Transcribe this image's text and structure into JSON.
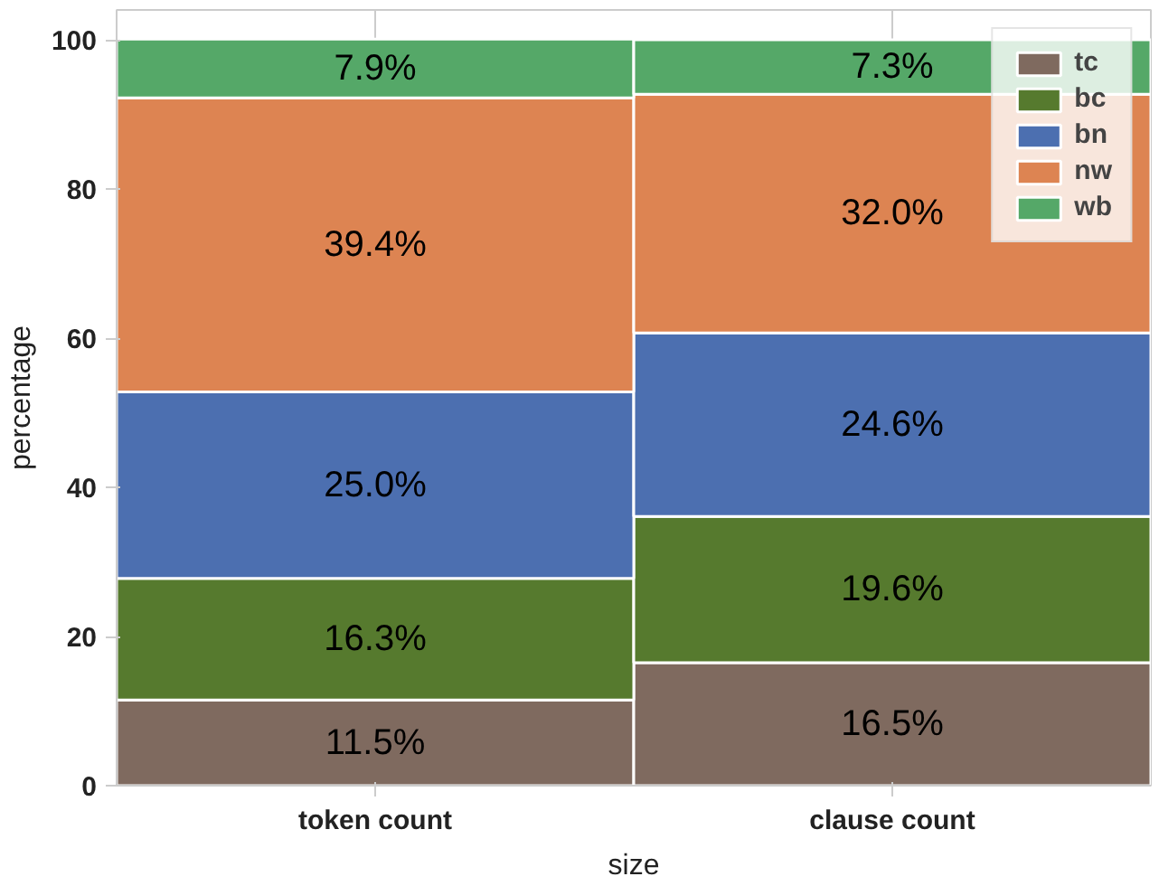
{
  "chart_data": {
    "type": "bar",
    "stacked": true,
    "xlabel": "size",
    "ylabel": "percentage",
    "categories": [
      "token count",
      "clause count"
    ],
    "series": [
      {
        "name": "tc",
        "color": "#7f6a5f",
        "values": [
          11.5,
          16.5
        ],
        "value_labels": [
          "11.5%",
          "16.5%"
        ]
      },
      {
        "name": "bc",
        "color": "#567a2e",
        "values": [
          16.3,
          19.6
        ],
        "value_labels": [
          "16.3%",
          "19.6%"
        ]
      },
      {
        "name": "bn",
        "color": "#4c6fb0",
        "values": [
          25.0,
          24.6
        ],
        "value_labels": [
          "25.0%",
          "24.6%"
        ]
      },
      {
        "name": "nw",
        "color": "#dd8452",
        "values": [
          39.4,
          32.0
        ],
        "value_labels": [
          "39.4%",
          "32.0%"
        ]
      },
      {
        "name": "wb",
        "color": "#55a868",
        "values": [
          7.9,
          7.3
        ],
        "value_labels": [
          "7.9%",
          "7.3%"
        ]
      }
    ],
    "ylim": [
      0,
      104
    ],
    "yticks": [
      0,
      20,
      40,
      60,
      80,
      100
    ],
    "grid": "x",
    "legend": "top right"
  }
}
